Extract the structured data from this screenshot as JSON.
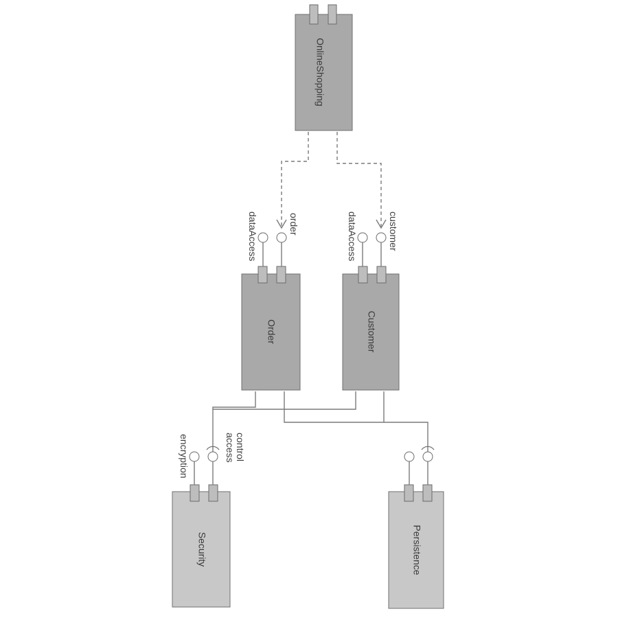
{
  "components": {
    "online_shopping": "OnlineShopping",
    "order": "Order",
    "customer": "Customer",
    "security": "Security",
    "persistence": "Persistence"
  },
  "interfaces": {
    "order_data_access": "dataAccess",
    "order_order": "order",
    "customer_data_access": "dataAccess",
    "customer_customer": "customer",
    "security_encryption": "encryption",
    "security_access_control": "access control"
  },
  "colors": {
    "component_dark": "#a9a9a9",
    "component_light": "#c8c8c8",
    "connector": "#7a7a7a"
  }
}
